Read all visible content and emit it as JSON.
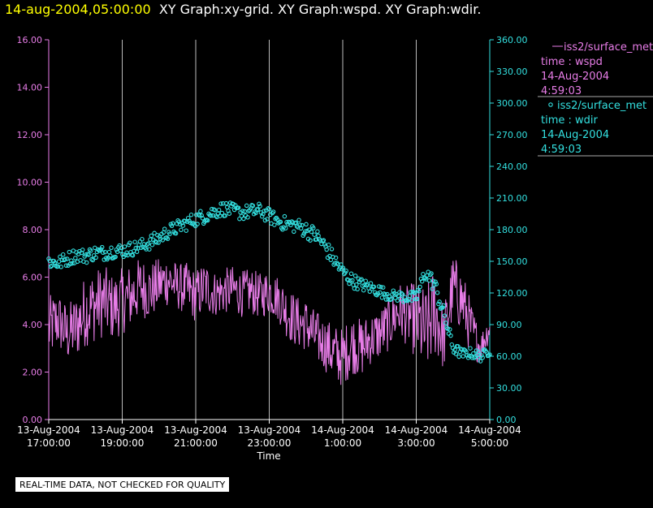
{
  "header": {
    "datetime": "14-aug-2004,05:00:00",
    "graphs": "XY Graph:xy-grid.  XY Graph:wspd.  XY Graph:wdir."
  },
  "notice": "REAL-TIME DATA, NOT CHECKED FOR QUALITY",
  "colors": {
    "wspd": "#e87de8",
    "wdir": "#33e0e0",
    "grid": "#bbbbbb",
    "title_date": "#ffff00"
  },
  "chart_data": {
    "type": "line",
    "xlabel": "Time",
    "x_ticks": [
      {
        "t": 17,
        "label1": "13-Aug-2004",
        "label2": "17:00:00"
      },
      {
        "t": 19,
        "label1": "13-Aug-2004",
        "label2": "19:00:00"
      },
      {
        "t": 21,
        "label1": "13-Aug-2004",
        "label2": "21:00:00"
      },
      {
        "t": 23,
        "label1": "13-Aug-2004",
        "label2": "23:00:00"
      },
      {
        "t": 25,
        "label1": "14-Aug-2004",
        "label2": "1:00:00"
      },
      {
        "t": 27,
        "label1": "14-Aug-2004",
        "label2": "3:00:00"
      },
      {
        "t": 29,
        "label1": "14-Aug-2004",
        "label2": "5:00:00"
      }
    ],
    "xlim": [
      17,
      29
    ],
    "y_left": {
      "lim": [
        0,
        16
      ],
      "ticks": [
        "0.00",
        "2.00",
        "4.00",
        "6.00",
        "8.00",
        "10.00",
        "12.00",
        "14.00",
        "16.00"
      ]
    },
    "y_right": {
      "lim": [
        0,
        360
      ],
      "ticks": [
        "0.00",
        "30.00",
        "60.00",
        "90.00",
        "120.00",
        "150.00",
        "180.00",
        "210.00",
        "240.00",
        "270.00",
        "300.00",
        "330.00",
        "360.00"
      ]
    },
    "grid": "vertical",
    "legend_position": "right",
    "series": [
      {
        "name": "iss2/surface_met",
        "legend_lines": [
          "iss2/surface_met",
          "time : wspd",
          "14-Aug-2004",
          "4:59:03"
        ],
        "axis": "left",
        "style": "line",
        "x": [
          17.0,
          17.25,
          17.5,
          17.75,
          18.0,
          18.25,
          18.5,
          18.75,
          19.0,
          19.25,
          19.5,
          19.75,
          20.0,
          20.25,
          20.5,
          20.75,
          21.0,
          21.25,
          21.5,
          21.75,
          22.0,
          22.25,
          22.5,
          22.75,
          23.0,
          23.25,
          23.5,
          23.75,
          24.0,
          24.25,
          24.5,
          24.75,
          25.0,
          25.25,
          25.5,
          25.75,
          26.0,
          26.25,
          26.5,
          26.75,
          27.0,
          27.25,
          27.5,
          27.75,
          28.0,
          28.25,
          28.5,
          28.75,
          29.0
        ],
        "y": [
          3.8,
          4.2,
          3.6,
          3.9,
          4.6,
          4.8,
          5.0,
          4.7,
          5.0,
          5.2,
          5.6,
          5.4,
          5.7,
          5.9,
          5.6,
          5.5,
          5.2,
          5.6,
          5.3,
          5.4,
          5.5,
          5.3,
          5.4,
          5.2,
          5.4,
          5.1,
          4.5,
          4.1,
          4.0,
          3.5,
          3.2,
          2.8,
          2.6,
          3.2,
          3.0,
          3.4,
          3.6,
          4.0,
          4.6,
          4.4,
          4.2,
          3.6,
          4.6,
          3.4,
          5.6,
          5.0,
          3.8,
          3.0,
          3.9
        ],
        "noise": [
          1.0,
          0.9,
          0.9,
          1.0,
          1.1,
          1.1,
          1.1,
          1.0,
          1.0,
          1.0,
          0.9,
          0.9,
          0.8,
          0.8,
          0.7,
          0.8,
          0.8,
          0.8,
          0.7,
          0.7,
          0.7,
          0.7,
          0.7,
          0.7,
          0.7,
          0.7,
          0.8,
          0.8,
          0.8,
          0.8,
          0.8,
          0.9,
          0.9,
          0.9,
          0.9,
          0.8,
          0.8,
          0.8,
          0.9,
          0.9,
          1.2,
          1.4,
          1.4,
          1.0,
          1.0,
          1.0,
          0.8,
          0.5,
          0.4
        ]
      },
      {
        "name": "iss2/surface_met",
        "legend_lines": [
          "iss2/surface_met",
          "time : wdir",
          "14-Aug-2004",
          "4:59:03"
        ],
        "axis": "right",
        "style": "scatter",
        "x": [
          17.0,
          17.25,
          17.5,
          17.75,
          18.0,
          18.25,
          18.5,
          18.75,
          19.0,
          19.25,
          19.5,
          19.75,
          20.0,
          20.25,
          20.5,
          20.75,
          21.0,
          21.25,
          21.5,
          21.75,
          22.0,
          22.25,
          22.5,
          22.75,
          23.0,
          23.25,
          23.5,
          23.75,
          24.0,
          24.25,
          24.5,
          24.75,
          25.0,
          25.25,
          25.5,
          25.75,
          26.0,
          26.25,
          26.5,
          26.75,
          27.0,
          27.25,
          27.5,
          27.75,
          28.0,
          28.25,
          28.5,
          28.75,
          29.0
        ],
        "y": [
          150,
          148,
          152,
          156,
          155,
          158,
          158,
          160,
          160,
          162,
          164,
          168,
          172,
          178,
          182,
          186,
          190,
          193,
          197,
          200,
          198,
          196,
          197,
          198,
          193,
          188,
          185,
          184,
          180,
          175,
          165,
          152,
          140,
          132,
          128,
          125,
          122,
          118,
          117,
          116,
          115,
          140,
          128,
          100,
          68,
          62,
          63,
          60,
          65
        ],
        "noise": [
          7,
          7,
          7,
          7,
          7,
          7,
          7,
          7,
          7,
          7,
          7,
          7,
          7,
          7,
          7,
          7,
          7,
          7,
          7,
          7,
          7,
          7,
          7,
          7,
          7,
          7,
          7,
          7,
          8,
          8,
          8,
          8,
          7,
          7,
          6,
          6,
          6,
          5,
          5,
          6,
          6,
          8,
          8,
          8,
          6,
          5,
          5,
          5,
          4
        ]
      }
    ]
  }
}
